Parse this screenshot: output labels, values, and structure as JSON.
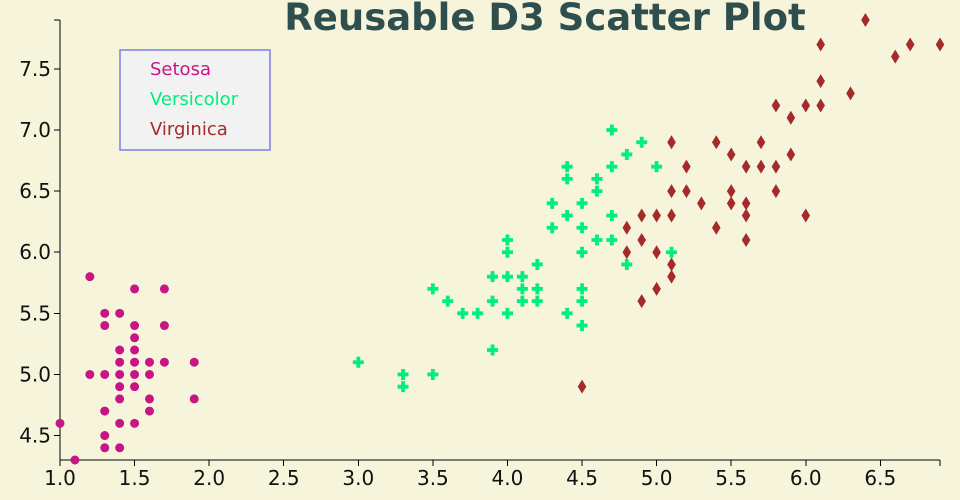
{
  "chart_data": {
    "type": "scatter",
    "title": "Reusable D3 Scatter Plot",
    "xlabel": "",
    "ylabel": "",
    "xlim": [
      1.0,
      6.9
    ],
    "ylim": [
      4.3,
      7.9
    ],
    "x_ticks": [
      "1.0",
      "1.5",
      "2.0",
      "2.5",
      "3.0",
      "3.5",
      "4.0",
      "4.5",
      "5.0",
      "5.5",
      "6.0",
      "6.5"
    ],
    "y_ticks": [
      "4.5",
      "5.0",
      "5.5",
      "6.0",
      "6.5",
      "7.0",
      "7.5"
    ],
    "grid": false,
    "legend": {
      "placement": "top-left",
      "entries": [
        "Setosa",
        "Versicolor",
        "Virginica"
      ]
    },
    "series": [
      {
        "name": "Setosa",
        "marker": "circle",
        "color": "#c71585",
        "points": [
          [
            1.0,
            4.6
          ],
          [
            1.1,
            4.3
          ],
          [
            1.2,
            5.8
          ],
          [
            1.2,
            5.0
          ],
          [
            1.3,
            5.5
          ],
          [
            1.3,
            5.4
          ],
          [
            1.3,
            5.0
          ],
          [
            1.3,
            4.7
          ],
          [
            1.3,
            4.5
          ],
          [
            1.3,
            4.4
          ],
          [
            1.4,
            5.5
          ],
          [
            1.4,
            5.2
          ],
          [
            1.4,
            5.1
          ],
          [
            1.4,
            5.0
          ],
          [
            1.4,
            4.9
          ],
          [
            1.4,
            4.8
          ],
          [
            1.4,
            4.6
          ],
          [
            1.4,
            4.4
          ],
          [
            1.5,
            5.7
          ],
          [
            1.5,
            5.4
          ],
          [
            1.5,
            5.3
          ],
          [
            1.5,
            5.2
          ],
          [
            1.5,
            5.1
          ],
          [
            1.5,
            5.0
          ],
          [
            1.5,
            4.9
          ],
          [
            1.5,
            4.6
          ],
          [
            1.6,
            5.1
          ],
          [
            1.6,
            5.0
          ],
          [
            1.6,
            4.8
          ],
          [
            1.6,
            4.7
          ],
          [
            1.7,
            5.7
          ],
          [
            1.7,
            5.4
          ],
          [
            1.7,
            5.1
          ],
          [
            1.9,
            5.1
          ],
          [
            1.9,
            4.8
          ]
        ]
      },
      {
        "name": "Versicolor",
        "marker": "cross",
        "color": "#00ee7a",
        "points": [
          [
            3.0,
            5.1
          ],
          [
            3.3,
            5.0
          ],
          [
            3.3,
            4.9
          ],
          [
            3.5,
            5.7
          ],
          [
            3.5,
            5.0
          ],
          [
            3.6,
            5.6
          ],
          [
            3.7,
            5.5
          ],
          [
            3.8,
            5.5
          ],
          [
            3.9,
            5.8
          ],
          [
            3.9,
            5.6
          ],
          [
            3.9,
            5.2
          ],
          [
            4.0,
            6.1
          ],
          [
            4.0,
            6.0
          ],
          [
            4.0,
            5.8
          ],
          [
            4.0,
            5.5
          ],
          [
            4.1,
            5.8
          ],
          [
            4.1,
            5.7
          ],
          [
            4.1,
            5.6
          ],
          [
            4.2,
            5.9
          ],
          [
            4.2,
            5.7
          ],
          [
            4.2,
            5.6
          ],
          [
            4.3,
            6.4
          ],
          [
            4.3,
            6.2
          ],
          [
            4.4,
            6.7
          ],
          [
            4.4,
            6.6
          ],
          [
            4.4,
            6.3
          ],
          [
            4.4,
            5.5
          ],
          [
            4.5,
            6.4
          ],
          [
            4.5,
            6.2
          ],
          [
            4.5,
            6.0
          ],
          [
            4.5,
            5.7
          ],
          [
            4.5,
            5.6
          ],
          [
            4.5,
            5.4
          ],
          [
            4.6,
            6.6
          ],
          [
            4.6,
            6.5
          ],
          [
            4.6,
            6.1
          ],
          [
            4.7,
            7.0
          ],
          [
            4.7,
            6.7
          ],
          [
            4.7,
            6.3
          ],
          [
            4.7,
            6.1
          ],
          [
            4.8,
            6.8
          ],
          [
            4.8,
            5.9
          ],
          [
            4.9,
            6.9
          ],
          [
            5.0,
            6.7
          ],
          [
            5.1,
            6.0
          ]
        ]
      },
      {
        "name": "Virginica",
        "marker": "diamond",
        "color": "#a52a2a",
        "points": [
          [
            4.5,
            4.9
          ],
          [
            4.8,
            6.2
          ],
          [
            4.8,
            6.0
          ],
          [
            4.9,
            6.3
          ],
          [
            4.9,
            6.1
          ],
          [
            4.9,
            5.6
          ],
          [
            5.0,
            6.3
          ],
          [
            5.0,
            6.0
          ],
          [
            5.0,
            5.7
          ],
          [
            5.1,
            6.9
          ],
          [
            5.1,
            6.5
          ],
          [
            5.1,
            6.3
          ],
          [
            5.1,
            5.9
          ],
          [
            5.1,
            5.8
          ],
          [
            5.2,
            6.7
          ],
          [
            5.2,
            6.5
          ],
          [
            5.3,
            6.4
          ],
          [
            5.4,
            6.9
          ],
          [
            5.4,
            6.2
          ],
          [
            5.5,
            6.8
          ],
          [
            5.5,
            6.5
          ],
          [
            5.5,
            6.4
          ],
          [
            5.6,
            6.7
          ],
          [
            5.6,
            6.4
          ],
          [
            5.6,
            6.3
          ],
          [
            5.6,
            6.1
          ],
          [
            5.7,
            6.9
          ],
          [
            5.7,
            6.7
          ],
          [
            5.8,
            7.2
          ],
          [
            5.8,
            6.7
          ],
          [
            5.8,
            6.5
          ],
          [
            5.9,
            7.1
          ],
          [
            5.9,
            6.8
          ],
          [
            6.0,
            7.2
          ],
          [
            6.0,
            6.3
          ],
          [
            6.1,
            7.7
          ],
          [
            6.1,
            7.4
          ],
          [
            6.1,
            7.2
          ],
          [
            6.3,
            7.3
          ],
          [
            6.4,
            7.9
          ],
          [
            6.6,
            7.6
          ],
          [
            6.7,
            7.7
          ],
          [
            6.9,
            7.7
          ]
        ]
      }
    ]
  }
}
